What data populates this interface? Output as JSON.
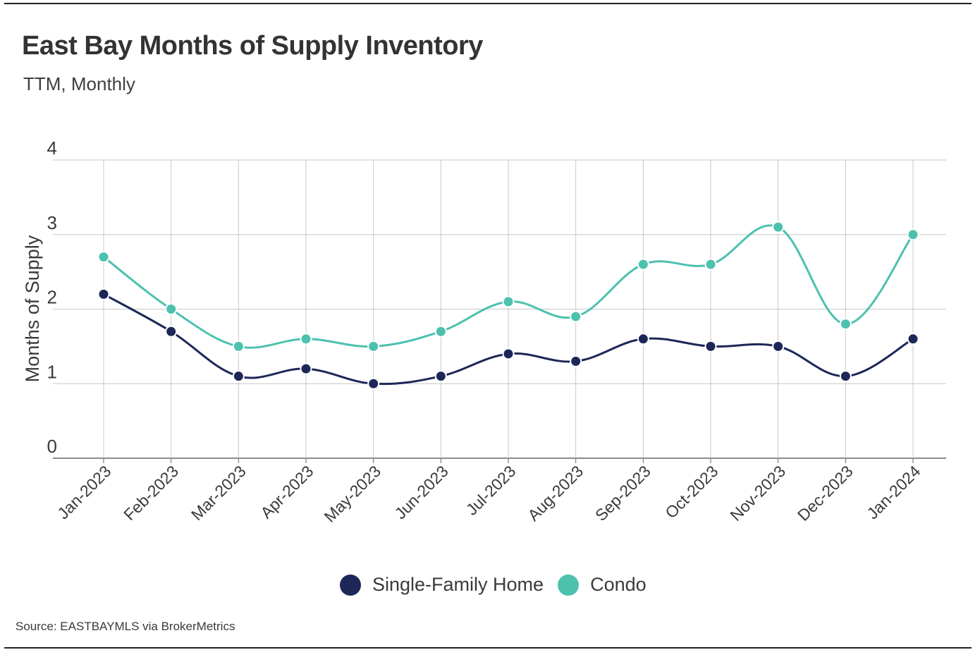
{
  "header": {
    "title": "East Bay Months of Supply Inventory",
    "subtitle": "TTM, Monthly"
  },
  "source": "Source:  EASTBAYMLS via BrokerMetrics",
  "colors": {
    "single_family": "#1c2757",
    "condo": "#4cc1ae",
    "grid": "#c8c8c8",
    "text": "#3a3a3a"
  },
  "chart_data": {
    "type": "line",
    "title": "East Bay Months of Supply Inventory",
    "subtitle": "TTM, Monthly",
    "xlabel": "",
    "ylabel": "Months of Supply",
    "ylim": [
      0,
      4
    ],
    "yticks": [
      "0",
      "1",
      "2",
      "3",
      "4"
    ],
    "grid": true,
    "legend_position": "bottom-center",
    "categories": [
      "Jan-2023",
      "Feb-2023",
      "Mar-2023",
      "Apr-2023",
      "May-2023",
      "Jun-2023",
      "Jul-2023",
      "Aug-2023",
      "Sep-2023",
      "Oct-2023",
      "Nov-2023",
      "Dec-2023",
      "Jan-2024"
    ],
    "series": [
      {
        "name": "Single-Family Home",
        "color": "#1c2757",
        "values": [
          2.2,
          1.7,
          1.1,
          1.2,
          1.0,
          1.1,
          1.4,
          1.3,
          1.6,
          1.5,
          1.5,
          1.1,
          1.6
        ]
      },
      {
        "name": "Condo",
        "color": "#4cc1ae",
        "values": [
          2.7,
          2.0,
          1.5,
          1.6,
          1.5,
          1.7,
          2.1,
          1.9,
          2.6,
          2.6,
          3.1,
          1.8,
          3.0
        ]
      }
    ]
  }
}
